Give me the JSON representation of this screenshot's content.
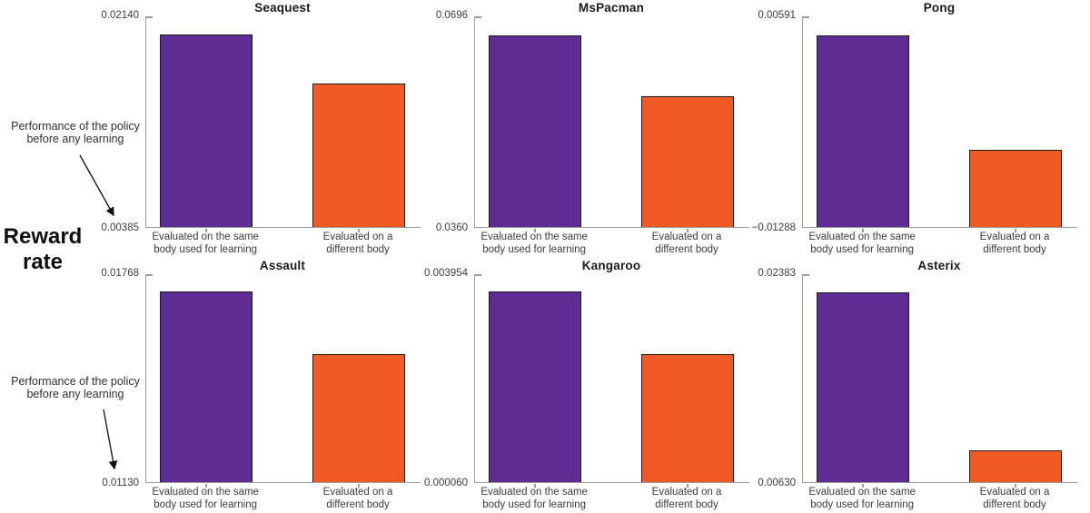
{
  "figure": {
    "ylabel": "Reward\nrate",
    "annotation_top": "Performance of the policy\nbefore any learning",
    "annotation_bottom": "Performance of the policy\nbefore any learning"
  },
  "chart_data": {
    "type": "bar",
    "layout": "2 rows x 3 columns of subplots",
    "figure_ylabel": "Reward rate",
    "annotation": "Performance of the policy before any learning (arrows point to the y-axis minimum of the top-left and bottom-left subplots)",
    "grid": false,
    "categories": [
      "Evaluated on the same body used for learning",
      "Evaluated on a different body"
    ],
    "series_colors": [
      "#5e2c93",
      "#f15a24"
    ],
    "xtick_labels": {
      "same_body": "Evaluated on the same\nbody used for learning",
      "different_body": "Evaluated on a\ndifferent body"
    },
    "charts": [
      {
        "title": "Seaquest",
        "ymin": 0.00385,
        "ymax": 0.0214,
        "ymin_label": "0.00385",
        "ymax_label": "0.02140",
        "values": [
          0.0199,
          0.0158
        ]
      },
      {
        "title": "MsPacman",
        "ymin": 0.036,
        "ymax": 0.0696,
        "ymin_label": "0.0360",
        "ymax_label": "0.0696",
        "values": [
          0.0666,
          0.0568
        ]
      },
      {
        "title": "Pong",
        "ymin": -0.01288,
        "ymax": 0.00591,
        "ymin_label": "−0.01288",
        "ymax_label": "0.00591",
        "values": [
          0.0042,
          -0.006
        ]
      },
      {
        "title": "Assault",
        "ymin": 0.0113,
        "ymax": 0.01768,
        "ymin_label": "0.01130",
        "ymax_label": "0.01768",
        "values": [
          0.01715,
          0.01523
        ]
      },
      {
        "title": "Kangaroo",
        "ymin": 6e-05,
        "ymax": 0.003954,
        "ymin_label": "0.000060",
        "ymax_label": "0.003954",
        "values": [
          0.00363,
          0.00246
        ]
      },
      {
        "title": "Asterix",
        "ymin": 0.0063,
        "ymax": 0.02383,
        "ymin_label": "0.00630",
        "ymax_label": "0.02383",
        "values": [
          0.0223,
          0.009
        ]
      }
    ]
  }
}
